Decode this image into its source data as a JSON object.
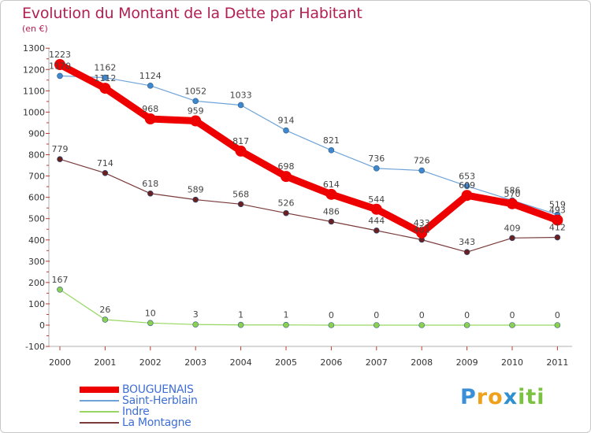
{
  "title": "Evolution du Montant de la Dette par Habitant",
  "subtitle": "(en €)",
  "brand": {
    "letters": [
      "P",
      "r",
      "o",
      "x",
      "i",
      "t",
      "i"
    ],
    "colors": [
      "#3b8fd6",
      "#f0a11c",
      "#f0a11c",
      "#2f8fcf",
      "#7cc242",
      "#7cc242",
      "#7cc242"
    ]
  },
  "chart_data": {
    "type": "line",
    "x": [
      "2000",
      "2001",
      "2002",
      "2003",
      "2004",
      "2005",
      "2006",
      "2007",
      "2008",
      "2009",
      "2010",
      "2011"
    ],
    "yticks": [
      -100,
      0,
      100,
      200,
      300,
      400,
      500,
      600,
      700,
      800,
      900,
      1000,
      1100,
      1200,
      1300
    ],
    "ylim": [
      -100,
      1300
    ],
    "grid": false,
    "legend_position": "bottom-left",
    "series": [
      {
        "name": "BOUGUENAIS",
        "color": "#ee0000",
        "line_width": 9,
        "marker_color": "#ee0000",
        "values": [
          1223,
          1112,
          968,
          959,
          817,
          698,
          614,
          544,
          433,
          609,
          570,
          493
        ],
        "labels": [
          "1223",
          "1112",
          "968",
          "959",
          "817",
          "698",
          "614",
          "544",
          "433",
          "609",
          "570",
          "493"
        ]
      },
      {
        "name": "Saint-Herblain",
        "color": "#6fa3d8",
        "line_width": 1.2,
        "marker_color": "#3f88cc",
        "values": [
          1170,
          1162,
          1124,
          1052,
          1033,
          914,
          821,
          736,
          726,
          653,
          586,
          519
        ],
        "labels": [
          "1170",
          "1162",
          "1124",
          "1052",
          "1033",
          "914",
          "821",
          "736",
          "726",
          "653",
          "586",
          "519"
        ]
      },
      {
        "name": "Indre",
        "color": "#97d662",
        "line_width": 1.2,
        "marker_color": "#8dd050",
        "values": [
          167,
          26,
          10,
          3,
          1,
          1,
          0,
          0,
          0,
          0,
          0,
          0
        ],
        "labels": [
          "167",
          "26",
          "10",
          "3",
          "1",
          "1",
          "0",
          "0",
          "0",
          "0",
          "0",
          "0"
        ]
      },
      {
        "name": "La Montagne",
        "color": "#7a3b3b",
        "line_width": 1.2,
        "marker_color": "#6b1f1f",
        "values": [
          779,
          714,
          618,
          589,
          568,
          526,
          486,
          444,
          401,
          343,
          409,
          412
        ],
        "labels": [
          "779",
          "714",
          "618",
          "589",
          "568",
          "526",
          "486",
          "444",
          "401",
          "343",
          "409",
          "412"
        ]
      }
    ]
  }
}
